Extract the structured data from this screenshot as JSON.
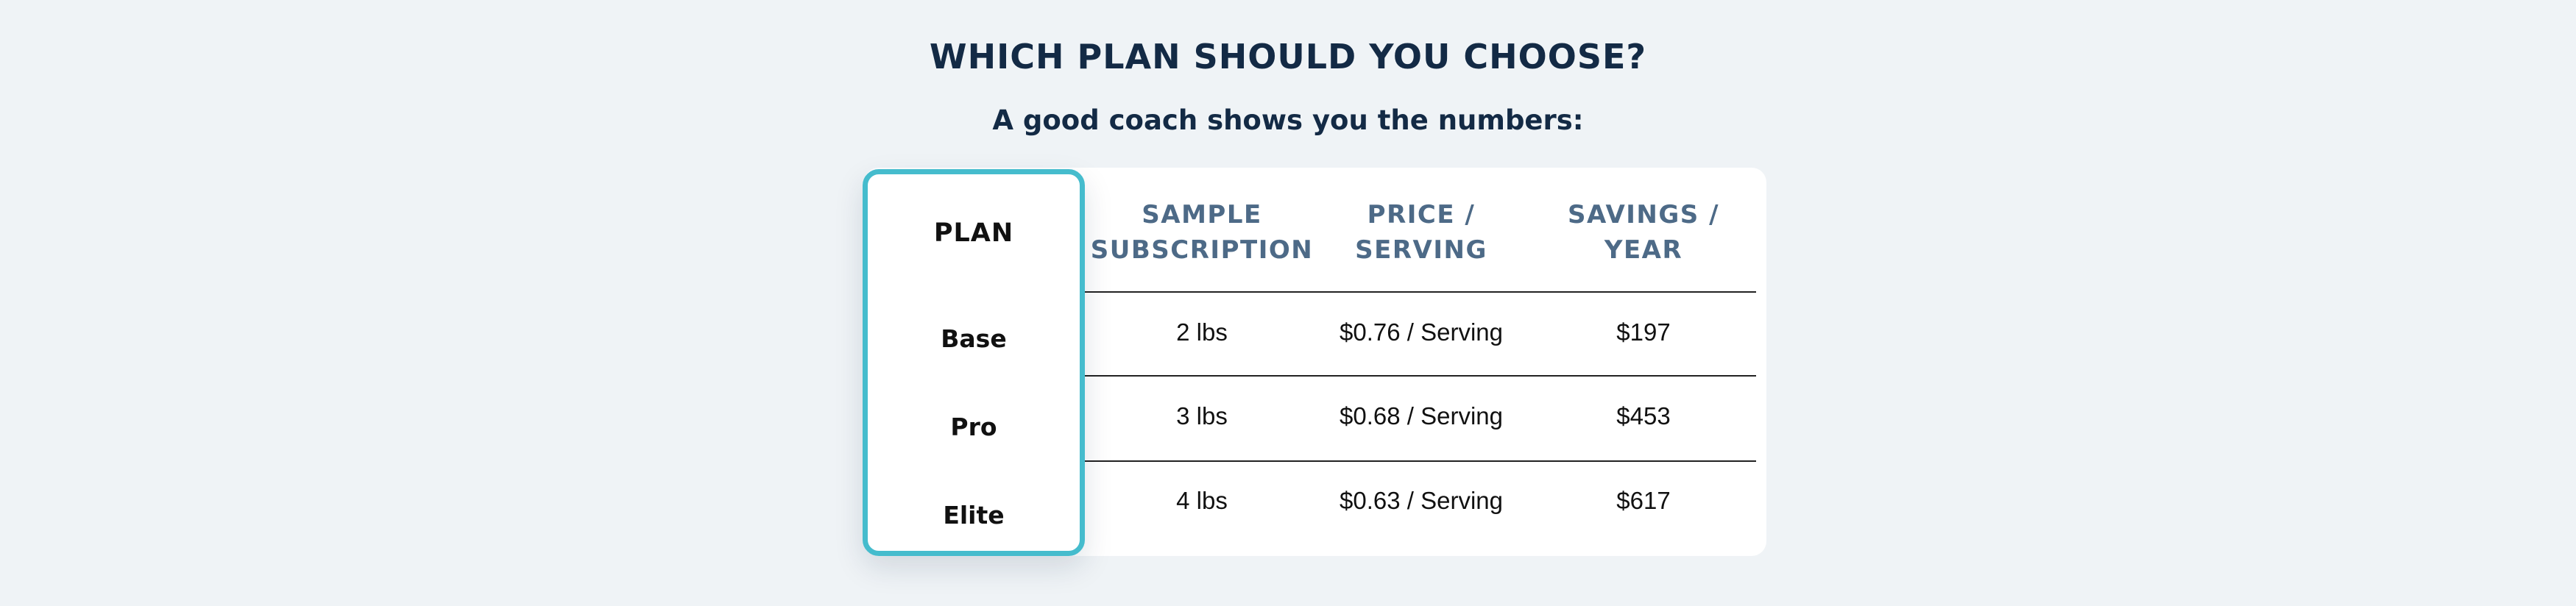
{
  "title": "WHICH PLAN SHOULD YOU CHOOSE?",
  "subtitle": "A good coach shows you the numbers:",
  "colors": {
    "heading": "#132a45",
    "column_header": "#4d6a87",
    "highlight_border": "#45bccd",
    "background": "#eff3f6"
  },
  "table": {
    "plan_header": "PLAN",
    "columns": [
      "SAMPLE\nSUBSCRIPTION",
      "PRICE /\nSERVING",
      "SAVINGS /\nYEAR"
    ],
    "rows": [
      {
        "plan": "Base",
        "subscription": "2 lbs",
        "price": "$0.76 / Serving",
        "savings": "$197"
      },
      {
        "plan": "Pro",
        "subscription": "3 lbs",
        "price": "$0.68 / Serving",
        "savings": "$453"
      },
      {
        "plan": "Elite",
        "subscription": "4 lbs",
        "price": "$0.63 / Serving",
        "savings": "$617"
      }
    ]
  }
}
